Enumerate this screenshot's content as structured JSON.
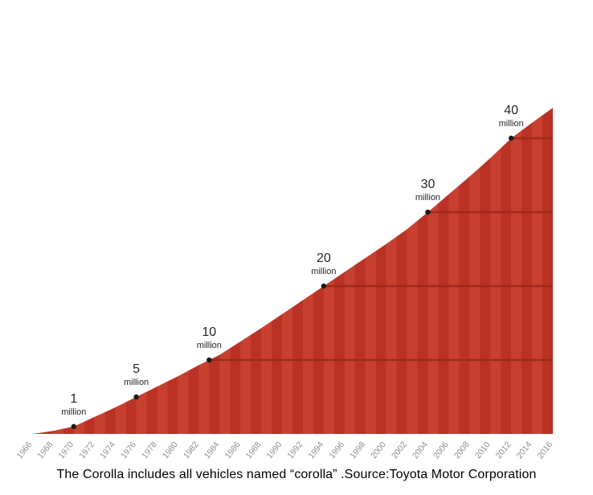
{
  "caption": "The Corolla includes all vehicles named “corolla” .Source:Toyota Motor Corporation",
  "chart_data": {
    "type": "area",
    "title": "",
    "xlabel": "",
    "ylabel": "",
    "legend": "none",
    "grid": "horizontal milestone lines visible inside area only",
    "xlim": [
      1966,
      2016
    ],
    "ylim": [
      0,
      45
    ],
    "x": [
      1966,
      1968,
      1970,
      1972,
      1974,
      1976,
      1978,
      1980,
      1982,
      1984,
      1986,
      1988,
      1990,
      1992,
      1994,
      1996,
      1998,
      2000,
      2002,
      2004,
      2006,
      2008,
      2010,
      2012,
      2014,
      2016
    ],
    "values": [
      0,
      0.4,
      1.0,
      2.3,
      3.6,
      5.0,
      6.4,
      7.8,
      9.3,
      10.7,
      12.5,
      14.3,
      16.2,
      18.1,
      20.0,
      21.9,
      23.8,
      25.7,
      27.7,
      30.0,
      32.4,
      34.8,
      37.3,
      40.0,
      42.1,
      44.1
    ],
    "grid_levels": [
      10,
      20,
      30,
      40
    ],
    "milestones": [
      {
        "label": "1",
        "unit": "million",
        "year": 1970,
        "value": 1
      },
      {
        "label": "5",
        "unit": "million",
        "year": 1976,
        "value": 5
      },
      {
        "label": "10",
        "unit": "million",
        "year": 1983,
        "value": 10
      },
      {
        "label": "20",
        "unit": "million",
        "year": 1994,
        "value": 20
      },
      {
        "label": "30",
        "unit": "million",
        "year": 2004,
        "value": 30
      },
      {
        "label": "40",
        "unit": "million",
        "year": 2012,
        "value": 40
      }
    ],
    "colors": {
      "area_stripe_a": "#c7402f",
      "area_stripe_b": "#ba3225",
      "gridline": "#9c2a1c",
      "marker": "#1a1a1a",
      "tick_label": "#8f8f8f",
      "annotation": "#262626"
    }
  }
}
